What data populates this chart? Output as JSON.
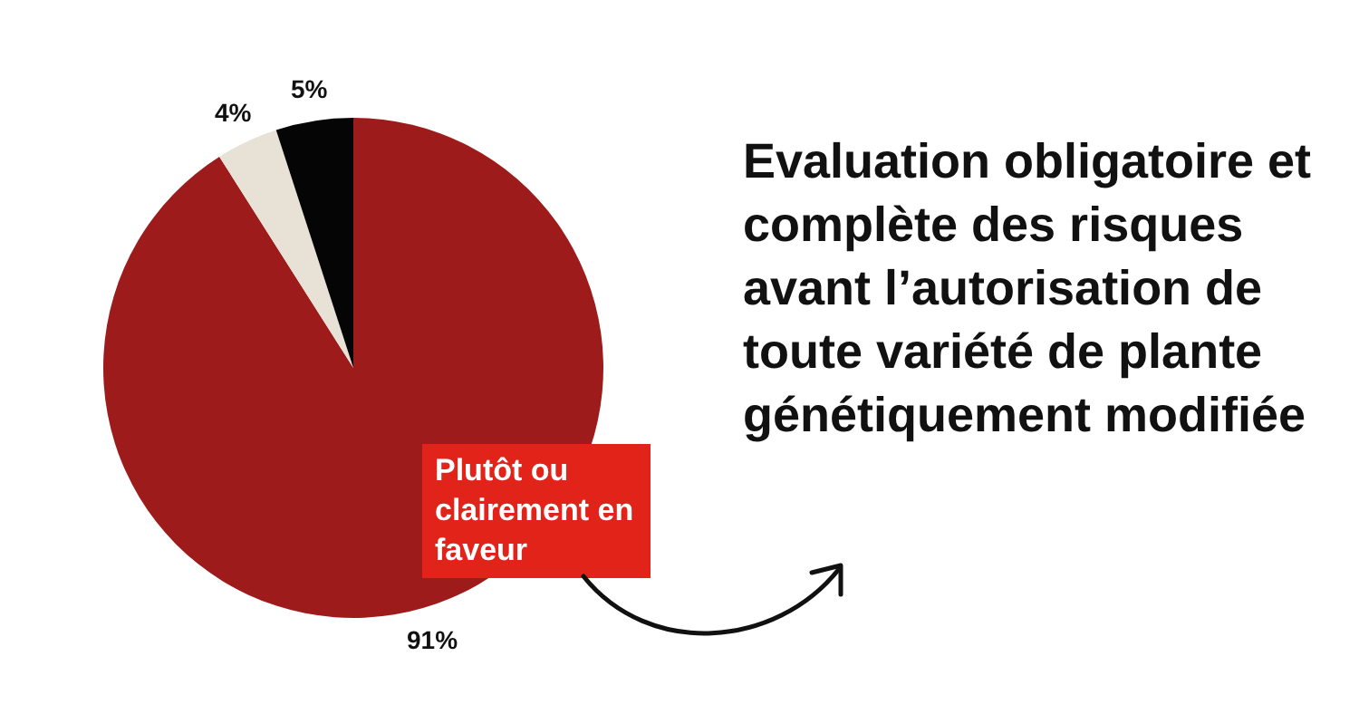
{
  "chart_data": {
    "type": "pie",
    "title": "Evaluation obligatoire et complète des risques avant l’autorisation de toute variété de plante génétiquement modifiée",
    "categories": [
      "Plutôt ou clairement en faveur",
      null,
      null
    ],
    "values": [
      91,
      4,
      5
    ],
    "colors": [
      "#9e1b1b",
      "#e8e2d6",
      "#050505"
    ],
    "value_labels": [
      "91%",
      "4%",
      "5%"
    ],
    "legend": false
  }
}
